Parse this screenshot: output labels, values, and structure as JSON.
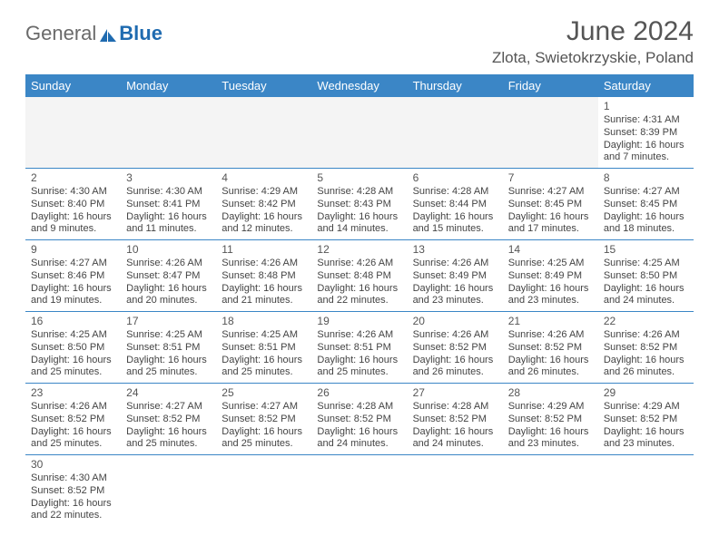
{
  "logo": {
    "part1": "General",
    "part2": "Blue"
  },
  "title": "June 2024",
  "location": "Zlota, Swietokrzyskie, Poland",
  "colors": {
    "header_bg": "#3b86c6",
    "header_text": "#ffffff",
    "text": "#444444",
    "title_text": "#555555",
    "logo_gray": "#6a6a6a",
    "logo_blue": "#1f6bb0",
    "row_border": "#3b86c6",
    "empty_bg": "#f4f4f4"
  },
  "dayHeaders": [
    "Sunday",
    "Monday",
    "Tuesday",
    "Wednesday",
    "Thursday",
    "Friday",
    "Saturday"
  ],
  "weeks": [
    [
      null,
      null,
      null,
      null,
      null,
      null,
      {
        "n": "1",
        "sunrise": "4:31 AM",
        "sunset": "8:39 PM",
        "daylight": "16 hours and 7 minutes."
      }
    ],
    [
      {
        "n": "2",
        "sunrise": "4:30 AM",
        "sunset": "8:40 PM",
        "daylight": "16 hours and 9 minutes."
      },
      {
        "n": "3",
        "sunrise": "4:30 AM",
        "sunset": "8:41 PM",
        "daylight": "16 hours and 11 minutes."
      },
      {
        "n": "4",
        "sunrise": "4:29 AM",
        "sunset": "8:42 PM",
        "daylight": "16 hours and 12 minutes."
      },
      {
        "n": "5",
        "sunrise": "4:28 AM",
        "sunset": "8:43 PM",
        "daylight": "16 hours and 14 minutes."
      },
      {
        "n": "6",
        "sunrise": "4:28 AM",
        "sunset": "8:44 PM",
        "daylight": "16 hours and 15 minutes."
      },
      {
        "n": "7",
        "sunrise": "4:27 AM",
        "sunset": "8:45 PM",
        "daylight": "16 hours and 17 minutes."
      },
      {
        "n": "8",
        "sunrise": "4:27 AM",
        "sunset": "8:45 PM",
        "daylight": "16 hours and 18 minutes."
      }
    ],
    [
      {
        "n": "9",
        "sunrise": "4:27 AM",
        "sunset": "8:46 PM",
        "daylight": "16 hours and 19 minutes."
      },
      {
        "n": "10",
        "sunrise": "4:26 AM",
        "sunset": "8:47 PM",
        "daylight": "16 hours and 20 minutes."
      },
      {
        "n": "11",
        "sunrise": "4:26 AM",
        "sunset": "8:48 PM",
        "daylight": "16 hours and 21 minutes."
      },
      {
        "n": "12",
        "sunrise": "4:26 AM",
        "sunset": "8:48 PM",
        "daylight": "16 hours and 22 minutes."
      },
      {
        "n": "13",
        "sunrise": "4:26 AM",
        "sunset": "8:49 PM",
        "daylight": "16 hours and 23 minutes."
      },
      {
        "n": "14",
        "sunrise": "4:25 AM",
        "sunset": "8:49 PM",
        "daylight": "16 hours and 23 minutes."
      },
      {
        "n": "15",
        "sunrise": "4:25 AM",
        "sunset": "8:50 PM",
        "daylight": "16 hours and 24 minutes."
      }
    ],
    [
      {
        "n": "16",
        "sunrise": "4:25 AM",
        "sunset": "8:50 PM",
        "daylight": "16 hours and 25 minutes."
      },
      {
        "n": "17",
        "sunrise": "4:25 AM",
        "sunset": "8:51 PM",
        "daylight": "16 hours and 25 minutes."
      },
      {
        "n": "18",
        "sunrise": "4:25 AM",
        "sunset": "8:51 PM",
        "daylight": "16 hours and 25 minutes."
      },
      {
        "n": "19",
        "sunrise": "4:26 AM",
        "sunset": "8:51 PM",
        "daylight": "16 hours and 25 minutes."
      },
      {
        "n": "20",
        "sunrise": "4:26 AM",
        "sunset": "8:52 PM",
        "daylight": "16 hours and 26 minutes."
      },
      {
        "n": "21",
        "sunrise": "4:26 AM",
        "sunset": "8:52 PM",
        "daylight": "16 hours and 26 minutes."
      },
      {
        "n": "22",
        "sunrise": "4:26 AM",
        "sunset": "8:52 PM",
        "daylight": "16 hours and 26 minutes."
      }
    ],
    [
      {
        "n": "23",
        "sunrise": "4:26 AM",
        "sunset": "8:52 PM",
        "daylight": "16 hours and 25 minutes."
      },
      {
        "n": "24",
        "sunrise": "4:27 AM",
        "sunset": "8:52 PM",
        "daylight": "16 hours and 25 minutes."
      },
      {
        "n": "25",
        "sunrise": "4:27 AM",
        "sunset": "8:52 PM",
        "daylight": "16 hours and 25 minutes."
      },
      {
        "n": "26",
        "sunrise": "4:28 AM",
        "sunset": "8:52 PM",
        "daylight": "16 hours and 24 minutes."
      },
      {
        "n": "27",
        "sunrise": "4:28 AM",
        "sunset": "8:52 PM",
        "daylight": "16 hours and 24 minutes."
      },
      {
        "n": "28",
        "sunrise": "4:29 AM",
        "sunset": "8:52 PM",
        "daylight": "16 hours and 23 minutes."
      },
      {
        "n": "29",
        "sunrise": "4:29 AM",
        "sunset": "8:52 PM",
        "daylight": "16 hours and 23 minutes."
      }
    ],
    [
      {
        "n": "30",
        "sunrise": "4:30 AM",
        "sunset": "8:52 PM",
        "daylight": "16 hours and 22 minutes."
      },
      null,
      null,
      null,
      null,
      null,
      null
    ]
  ],
  "labels": {
    "sunrise": "Sunrise: ",
    "sunset": "Sunset: ",
    "daylight": "Daylight: "
  }
}
